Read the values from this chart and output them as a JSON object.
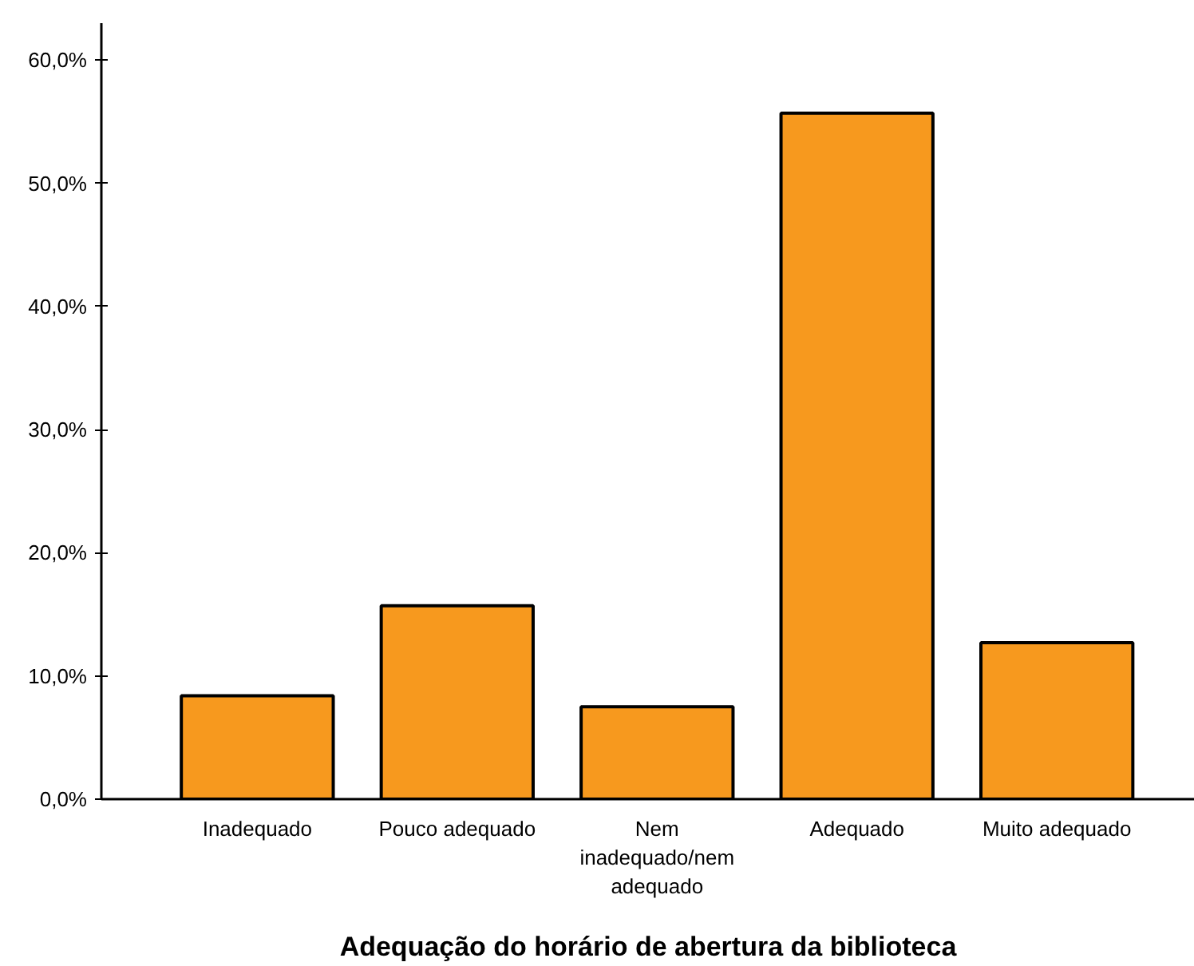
{
  "chart_data": {
    "type": "bar",
    "xlabel": "Adequação do horário de abertura da biblioteca",
    "categories": [
      "Inadequado",
      "Pouco adequado",
      "Nem inadequado/nem adequado",
      "Adequado",
      "Muito adequado"
    ],
    "values": [
      8.4,
      15.7,
      7.5,
      55.7,
      12.7
    ],
    "color": "#f7991e",
    "ylim": [
      0,
      63
    ],
    "yticks": [
      {
        "value": 0,
        "label": "0,0%"
      },
      {
        "value": 10,
        "label": "10,0%"
      },
      {
        "value": 20,
        "label": "20,0%"
      },
      {
        "value": 30,
        "label": "30,0%"
      },
      {
        "value": 40,
        "label": "40,0%"
      },
      {
        "value": 50,
        "label": "50,0%"
      },
      {
        "value": 60,
        "label": "60,0%"
      }
    ],
    "grid": false
  }
}
